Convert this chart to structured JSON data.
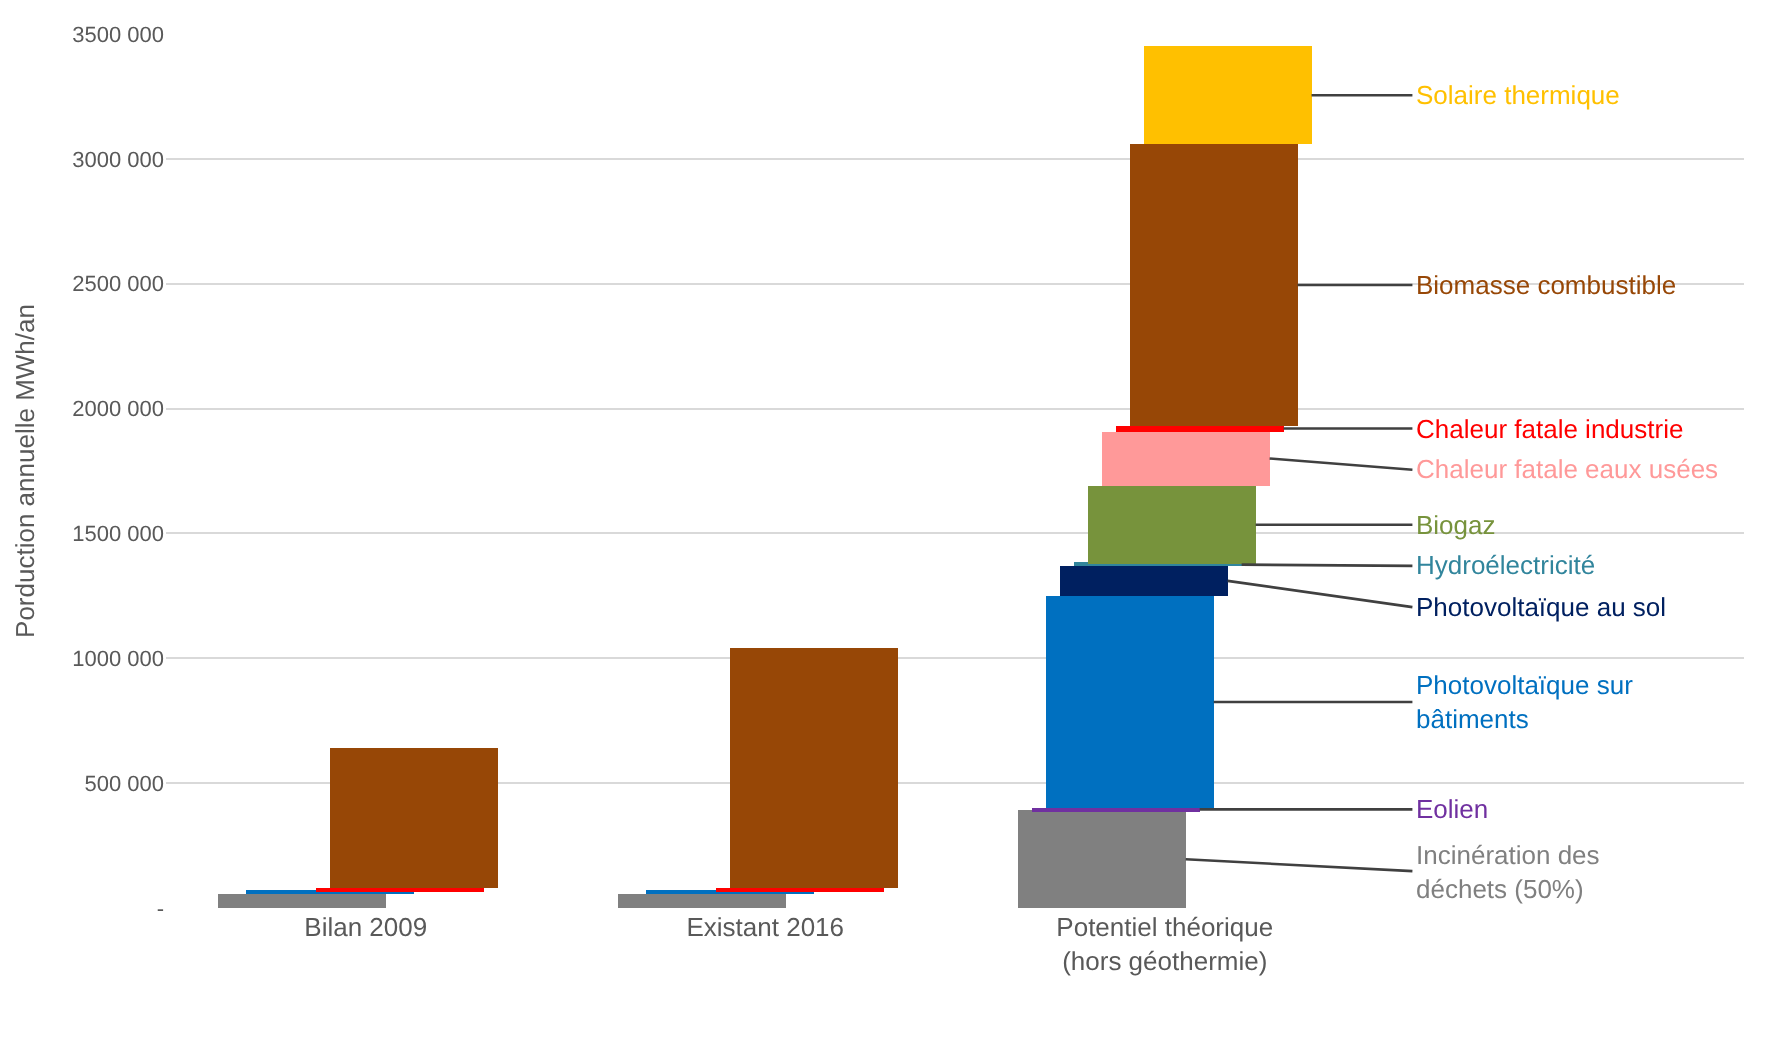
{
  "chart_data": {
    "type": "bar",
    "stacked": true,
    "ylabel": "Porduction annuelle MWh/an",
    "categories": [
      "Bilan 2009",
      "Existant 2016",
      "Potentiel théorique\n(hors géothermie)"
    ],
    "ylim": [
      0,
      3500000
    ],
    "yticks": [
      {
        "value": 0,
        "label": "-"
      },
      {
        "value": 500000,
        "label": "500 000"
      },
      {
        "value": 1000000,
        "label": "1000 000"
      },
      {
        "value": 1500000,
        "label": "1500 000"
      },
      {
        "value": 2000000,
        "label": "2000 000"
      },
      {
        "value": 2500000,
        "label": "2500 000"
      },
      {
        "value": 3000000,
        "label": "3000 000"
      },
      {
        "value": 3500000,
        "label": "3500 000"
      }
    ],
    "grid": "y",
    "series": [
      {
        "name": "Incinération des\ndéchets (50%)",
        "color": "#808080",
        "values": [
          60000,
          60000,
          390000
        ]
      },
      {
        "name": "Eolien",
        "color": "#7030a0",
        "values": [
          null,
          null,
          10000
        ]
      },
      {
        "name": "Photovoltaïque sur\nbâtiments",
        "color": "#0070c0",
        "values": [
          10000,
          10000,
          850000
        ]
      },
      {
        "name": "Photovoltaïque au sol",
        "color": "#002060",
        "values": [
          null,
          null,
          120000
        ]
      },
      {
        "name": "Hydroélectricité",
        "color": "#31859c",
        "values": [
          null,
          null,
          10000
        ]
      },
      {
        "name": "Biogaz",
        "color": "#77933c",
        "values": [
          null,
          null,
          310000
        ]
      },
      {
        "name": "Chaleur fatale eaux usées",
        "color": "#ff9999",
        "values": [
          null,
          null,
          220000
        ]
      },
      {
        "name": "Chaleur fatale industrie",
        "color": "#ff0000",
        "values": [
          10000,
          10000,
          20000
        ]
      },
      {
        "name": "Biomasse combustible",
        "color": "#974706",
        "values": [
          560000,
          960000,
          1130000
        ]
      },
      {
        "name": "Solaire thermique",
        "color": "#ffc000",
        "values": [
          null,
          null,
          390000
        ]
      }
    ]
  }
}
